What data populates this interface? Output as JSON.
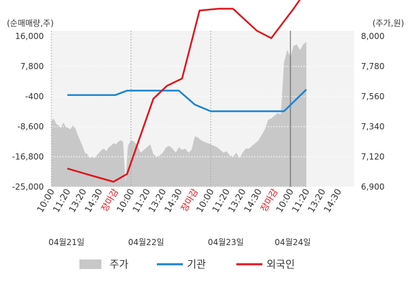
{
  "chart_data": {
    "type": "line",
    "left_axis_title": "(순매매량,주)",
    "right_axis_title": "(주가,원)",
    "left_ticks": [
      "16,000",
      "7,800",
      "-400",
      "-8,600",
      "-16,800",
      "-25,000"
    ],
    "right_ticks": [
      "8,000",
      "7,780",
      "7,560",
      "7,340",
      "7,120",
      "6,900"
    ],
    "left_ylim": [
      -25000,
      16000
    ],
    "right_ylim": [
      6900,
      8000
    ],
    "x_tick_labels": [
      "10:00",
      "11:20",
      "13:20",
      "14:30",
      "장마감",
      "10:00",
      "11:20",
      "13:20",
      "14:30",
      "장마감",
      "10:00",
      "11:20",
      "13:20",
      "14:30",
      "장마감",
      "10:00",
      "11:20",
      "13:20",
      "14:30"
    ],
    "x_tick_special": [
      false,
      false,
      false,
      false,
      true,
      false,
      false,
      false,
      false,
      true,
      false,
      false,
      false,
      false,
      true,
      false,
      false,
      false,
      false
    ],
    "date_labels": [
      "04월21일",
      "04월22일",
      "04월23일",
      "04월24일"
    ],
    "date_positions": [
      0,
      5,
      10,
      14.2
    ],
    "legend": [
      {
        "name": "주가",
        "color": "#c8c8c8",
        "shape": "box"
      },
      {
        "name": "기관",
        "color": "#1a82d3",
        "shape": "line"
      },
      {
        "name": "외국인",
        "color": "#e0141c",
        "shape": "line"
      }
    ],
    "series": [
      {
        "name": "외국인",
        "axis": "left",
        "color": "#e0141c",
        "x": [
          1,
          2.75,
          3.9,
          4.75,
          6.4,
          7.25,
          8.2,
          9.3,
          10.5,
          11.4,
          12.9,
          13.8,
          15.2,
          16.0
        ],
        "y": [
          -20000,
          -22200,
          -23600,
          -21500,
          -1000,
          2500,
          4500,
          23000,
          23500,
          23500,
          17500,
          15500,
          23500,
          28500
        ]
      },
      {
        "name": "기관",
        "axis": "left",
        "color": "#1a82d3",
        "x": [
          1,
          4.0,
          4.75,
          7.3,
          8.0,
          9.0,
          10.0,
          12.9,
          14.6,
          16.0
        ],
        "y": [
          0,
          0,
          1200,
          1200,
          1200,
          -2600,
          -4400,
          -4400,
          -4400,
          1500
        ]
      },
      {
        "name": "주가",
        "axis": "right",
        "type": "area",
        "color": "#c8c8c8",
        "x": [
          0,
          0.15,
          0.3,
          0.45,
          0.6,
          0.75,
          0.9,
          1.05,
          1.2,
          1.35,
          1.5,
          1.65,
          1.8,
          1.95,
          2.1,
          2.25,
          2.4,
          2.55,
          2.7,
          2.85,
          3.0,
          3.15,
          3.3,
          3.45,
          3.6,
          3.75,
          3.9,
          4.05,
          4.2,
          4.35,
          4.5,
          4.65,
          4.8,
          5.0,
          5.2,
          5.4,
          5.6,
          5.8,
          6.0,
          6.2,
          6.4,
          6.6,
          6.8,
          7.0,
          7.2,
          7.4,
          7.6,
          7.8,
          8.0,
          8.2,
          8.4,
          8.6,
          8.8,
          9.0,
          9.2,
          9.4,
          9.6,
          9.8,
          10.0,
          10.2,
          10.4,
          10.6,
          10.8,
          11.0,
          11.2,
          11.4,
          11.6,
          11.8,
          12.0,
          12.2,
          12.4,
          12.6,
          12.8,
          13.0,
          13.2,
          13.4,
          13.6,
          13.8,
          14.0,
          14.2,
          14.4,
          14.6,
          14.8,
          15.0,
          15.2,
          15.4,
          15.6,
          15.8,
          16.0
        ],
        "y": [
          7380,
          7400,
          7360,
          7350,
          7330,
          7370,
          7340,
          7330,
          7320,
          7350,
          7330,
          7280,
          7240,
          7200,
          7150,
          7140,
          7110,
          7120,
          7110,
          7130,
          7150,
          7170,
          7180,
          7160,
          7190,
          7200,
          7220,
          7210,
          7230,
          7240,
          7230,
          6930,
          7200,
          7240,
          7230,
          7200,
          7150,
          7170,
          7190,
          7210,
          7140,
          7120,
          7130,
          7150,
          7190,
          7200,
          7180,
          7150,
          7190,
          7170,
          7180,
          7150,
          7170,
          7270,
          7260,
          7240,
          7230,
          7220,
          7210,
          7200,
          7190,
          7170,
          7150,
          7160,
          7130,
          7120,
          7150,
          7110,
          7150,
          7180,
          7180,
          7200,
          7220,
          7240,
          7280,
          7320,
          7390,
          7400,
          7420,
          7440,
          7430,
          7810,
          7900,
          7850,
          7930,
          7940,
          7900,
          7940,
          7960
        ]
      }
    ]
  }
}
